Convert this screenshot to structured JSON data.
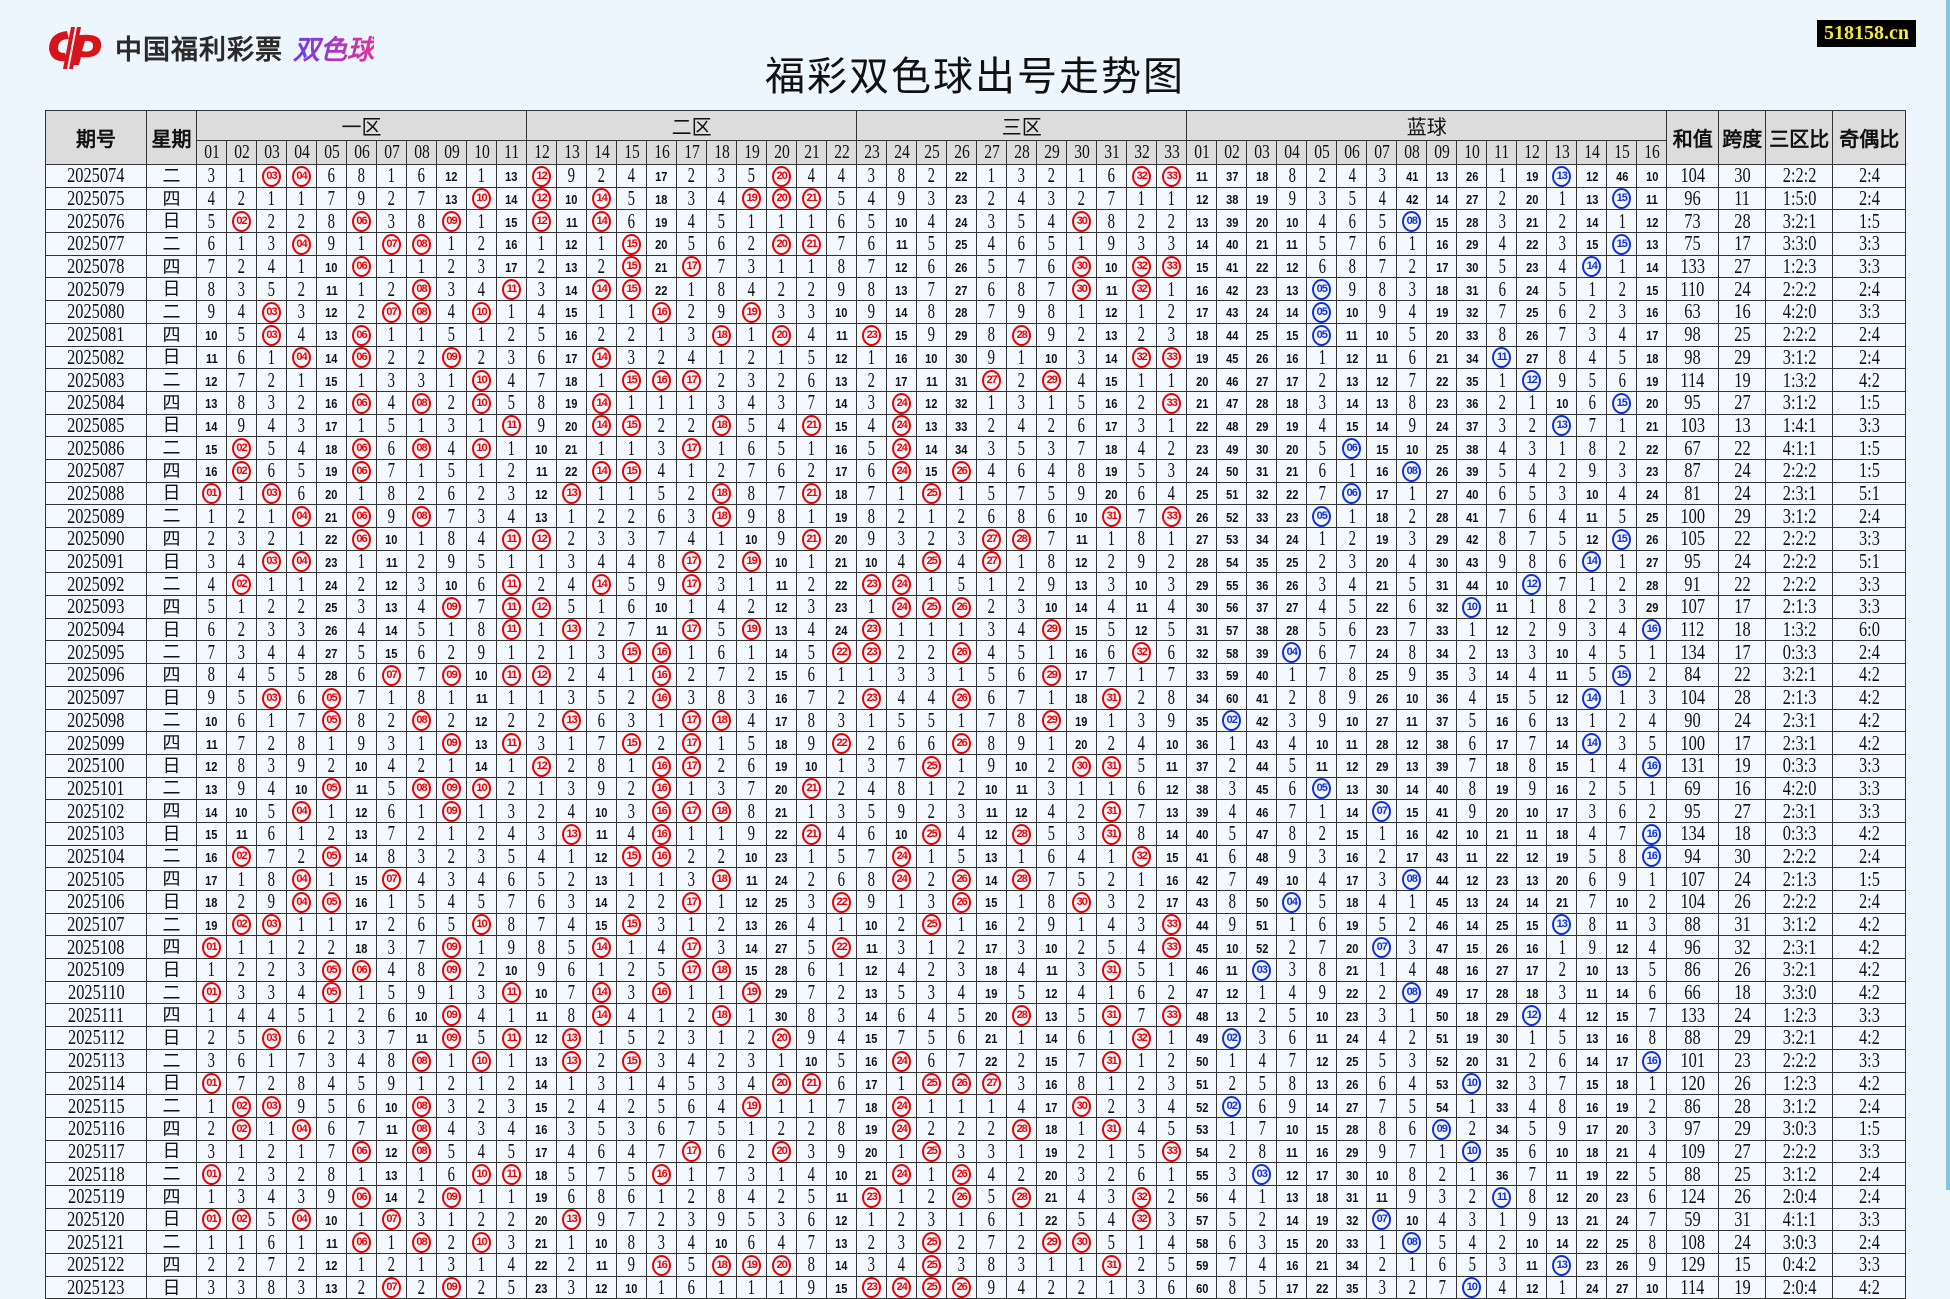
{
  "logo": {
    "brand": "中国福利彩票",
    "product": "双色球"
  },
  "watermark": "518158.cn",
  "title": "福彩双色球出号走势图",
  "headers": {
    "issue": "期号",
    "weekday": "星期",
    "zones": [
      "一区",
      "二区",
      "三区"
    ],
    "blue": "蓝球",
    "sum": "和值",
    "span": "跨度",
    "zone_ratio": "三区比",
    "odd_even": "奇偶比"
  },
  "red_numbers": [
    "01",
    "02",
    "03",
    "04",
    "05",
    "06",
    "07",
    "08",
    "09",
    "10",
    "11",
    "12",
    "13",
    "14",
    "15",
    "16",
    "17",
    "18",
    "19",
    "20",
    "21",
    "22",
    "23",
    "24",
    "25",
    "26",
    "27",
    "28",
    "29",
    "30",
    "31",
    "32",
    "33"
  ],
  "blue_numbers": [
    "01",
    "02",
    "03",
    "04",
    "05",
    "06",
    "07",
    "08",
    "09",
    "10",
    "11",
    "12",
    "13",
    "14",
    "15",
    "16"
  ],
  "first_row_omissions": {
    "red": [
      3,
      1,
      null,
      null,
      6,
      8,
      1,
      6,
      12,
      1,
      13,
      null,
      9,
      2,
      4,
      17,
      2,
      3,
      5,
      null,
      4,
      4,
      3,
      8,
      2,
      22,
      1,
      3,
      2,
      1,
      6,
      null,
      null
    ],
    "blue": [
      11,
      37,
      18,
      8,
      2,
      4,
      3,
      41,
      13,
      26,
      1,
      19,
      null,
      12,
      46,
      10
    ]
  },
  "colors": {
    "red_ball": "#e00000",
    "blue_ball": "#1030e0",
    "header_bg": "#dcdcdc",
    "cell_bg": "#f4f9ff",
    "watermark_text": "#f5e93a"
  },
  "rows": [
    {
      "issue": "2025074",
      "weekday": "二",
      "red": [
        3,
        4,
        12,
        20,
        32,
        33
      ],
      "blue": 13,
      "sum": 104,
      "span": 30,
      "zone_ratio": "2:2:2",
      "odd_even": "2:4"
    },
    {
      "issue": "2025075",
      "weekday": "四",
      "red": [
        10,
        12,
        14,
        19,
        20,
        21
      ],
      "blue": 15,
      "sum": 96,
      "span": 11,
      "zone_ratio": "1:5:0",
      "odd_even": "2:4"
    },
    {
      "issue": "2025076",
      "weekday": "日",
      "red": [
        2,
        6,
        9,
        12,
        14,
        30
      ],
      "blue": 8,
      "sum": 73,
      "span": 28,
      "zone_ratio": "3:2:1",
      "odd_even": "1:5"
    },
    {
      "issue": "2025077",
      "weekday": "二",
      "red": [
        4,
        7,
        8,
        15,
        20,
        21
      ],
      "blue": 15,
      "sum": 75,
      "span": 17,
      "zone_ratio": "3:3:0",
      "odd_even": "3:3"
    },
    {
      "issue": "2025078",
      "weekday": "四",
      "red": [
        6,
        15,
        17,
        30,
        32,
        33
      ],
      "blue": 14,
      "sum": 133,
      "span": 27,
      "zone_ratio": "1:2:3",
      "odd_even": "3:3"
    },
    {
      "issue": "2025079",
      "weekday": "日",
      "red": [
        8,
        11,
        14,
        15,
        30,
        32
      ],
      "blue": 5,
      "sum": 110,
      "span": 24,
      "zone_ratio": "2:2:2",
      "odd_even": "2:4"
    },
    {
      "issue": "2025080",
      "weekday": "二",
      "red": [
        3,
        7,
        8,
        10,
        16,
        19
      ],
      "blue": 5,
      "sum": 63,
      "span": 16,
      "zone_ratio": "4:2:0",
      "odd_even": "3:3"
    },
    {
      "issue": "2025081",
      "weekday": "四",
      "red": [
        3,
        6,
        18,
        20,
        23,
        28
      ],
      "blue": 5,
      "sum": 98,
      "span": 25,
      "zone_ratio": "2:2:2",
      "odd_even": "2:4"
    },
    {
      "issue": "2025082",
      "weekday": "日",
      "red": [
        4,
        6,
        9,
        14,
        32,
        33
      ],
      "blue": 11,
      "sum": 98,
      "span": 29,
      "zone_ratio": "3:1:2",
      "odd_even": "2:4"
    },
    {
      "issue": "2025083",
      "weekday": "二",
      "red": [
        10,
        15,
        16,
        17,
        27,
        29
      ],
      "blue": 12,
      "sum": 114,
      "span": 19,
      "zone_ratio": "1:3:2",
      "odd_even": "4:2"
    },
    {
      "issue": "2025084",
      "weekday": "四",
      "red": [
        6,
        8,
        10,
        14,
        24,
        33
      ],
      "blue": 15,
      "sum": 95,
      "span": 27,
      "zone_ratio": "3:1:2",
      "odd_even": "1:5"
    },
    {
      "issue": "2025085",
      "weekday": "日",
      "red": [
        11,
        14,
        15,
        18,
        21,
        24
      ],
      "blue": 13,
      "sum": 103,
      "span": 13,
      "zone_ratio": "1:4:1",
      "odd_even": "3:3"
    },
    {
      "issue": "2025086",
      "weekday": "二",
      "red": [
        2,
        6,
        8,
        10,
        17,
        24
      ],
      "blue": 6,
      "sum": 67,
      "span": 22,
      "zone_ratio": "4:1:1",
      "odd_even": "1:5"
    },
    {
      "issue": "2025087",
      "weekday": "四",
      "red": [
        2,
        6,
        14,
        15,
        24,
        26
      ],
      "blue": 8,
      "sum": 87,
      "span": 24,
      "zone_ratio": "2:2:2",
      "odd_even": "1:5"
    },
    {
      "issue": "2025088",
      "weekday": "日",
      "red": [
        1,
        3,
        13,
        18,
        21,
        25
      ],
      "blue": 6,
      "sum": 81,
      "span": 24,
      "zone_ratio": "2:3:1",
      "odd_even": "5:1"
    },
    {
      "issue": "2025089",
      "weekday": "二",
      "red": [
        4,
        6,
        8,
        18,
        31,
        33
      ],
      "blue": 5,
      "sum": 100,
      "span": 29,
      "zone_ratio": "3:1:2",
      "odd_even": "2:4"
    },
    {
      "issue": "2025090",
      "weekday": "四",
      "red": [
        6,
        11,
        12,
        21,
        27,
        28
      ],
      "blue": 15,
      "sum": 105,
      "span": 22,
      "zone_ratio": "2:2:2",
      "odd_even": "3:3"
    },
    {
      "issue": "2025091",
      "weekday": "日",
      "red": [
        3,
        4,
        17,
        19,
        25,
        27
      ],
      "blue": 14,
      "sum": 95,
      "span": 24,
      "zone_ratio": "2:2:2",
      "odd_even": "5:1"
    },
    {
      "issue": "2025092",
      "weekday": "二",
      "red": [
        2,
        11,
        14,
        17,
        23,
        24
      ],
      "blue": 12,
      "sum": 91,
      "span": 22,
      "zone_ratio": "2:2:2",
      "odd_even": "3:3"
    },
    {
      "issue": "2025093",
      "weekday": "四",
      "red": [
        9,
        11,
        12,
        24,
        25,
        26
      ],
      "blue": 10,
      "sum": 107,
      "span": 17,
      "zone_ratio": "2:1:3",
      "odd_even": "3:3"
    },
    {
      "issue": "2025094",
      "weekday": "日",
      "red": [
        11,
        13,
        17,
        19,
        23,
        29
      ],
      "blue": 16,
      "sum": 112,
      "span": 18,
      "zone_ratio": "1:3:2",
      "odd_even": "6:0"
    },
    {
      "issue": "2025095",
      "weekday": "二",
      "red": [
        15,
        16,
        22,
        23,
        26,
        32
      ],
      "blue": 4,
      "sum": 134,
      "span": 17,
      "zone_ratio": "0:3:3",
      "odd_even": "2:4"
    },
    {
      "issue": "2025096",
      "weekday": "四",
      "red": [
        7,
        9,
        11,
        12,
        16,
        29
      ],
      "blue": 15,
      "sum": 84,
      "span": 22,
      "zone_ratio": "3:2:1",
      "odd_even": "4:2"
    },
    {
      "issue": "2025097",
      "weekday": "日",
      "red": [
        3,
        5,
        16,
        23,
        26,
        31
      ],
      "blue": 14,
      "sum": 104,
      "span": 28,
      "zone_ratio": "2:1:3",
      "odd_even": "4:2"
    },
    {
      "issue": "2025098",
      "weekday": "二",
      "red": [
        5,
        8,
        13,
        17,
        18,
        29
      ],
      "blue": 2,
      "sum": 90,
      "span": 24,
      "zone_ratio": "2:3:1",
      "odd_even": "4:2"
    },
    {
      "issue": "2025099",
      "weekday": "四",
      "red": [
        9,
        11,
        15,
        17,
        22,
        26
      ],
      "blue": 14,
      "sum": 100,
      "span": 17,
      "zone_ratio": "2:3:1",
      "odd_even": "4:2"
    },
    {
      "issue": "2025100",
      "weekday": "日",
      "red": [
        12,
        16,
        17,
        25,
        30,
        31
      ],
      "blue": 16,
      "sum": 131,
      "span": 19,
      "zone_ratio": "0:3:3",
      "odd_even": "3:3"
    },
    {
      "issue": "2025101",
      "weekday": "二",
      "red": [
        5,
        8,
        9,
        10,
        16,
        21
      ],
      "blue": 5,
      "sum": 69,
      "span": 16,
      "zone_ratio": "4:2:0",
      "odd_even": "3:3"
    },
    {
      "issue": "2025102",
      "weekday": "四",
      "red": [
        4,
        9,
        16,
        17,
        18,
        31
      ],
      "blue": 7,
      "sum": 95,
      "span": 27,
      "zone_ratio": "2:3:1",
      "odd_even": "3:3"
    },
    {
      "issue": "2025103",
      "weekday": "日",
      "red": [
        13,
        16,
        21,
        25,
        28,
        31
      ],
      "blue": 16,
      "sum": 134,
      "span": 18,
      "zone_ratio": "0:3:3",
      "odd_even": "4:2"
    },
    {
      "issue": "2025104",
      "weekday": "二",
      "red": [
        2,
        5,
        15,
        16,
        24,
        32
      ],
      "blue": 16,
      "sum": 94,
      "span": 30,
      "zone_ratio": "2:2:2",
      "odd_even": "2:4"
    },
    {
      "issue": "2025105",
      "weekday": "四",
      "red": [
        4,
        7,
        18,
        24,
        26,
        28
      ],
      "blue": 8,
      "sum": 107,
      "span": 24,
      "zone_ratio": "2:1:3",
      "odd_even": "1:5"
    },
    {
      "issue": "2025106",
      "weekday": "日",
      "red": [
        4,
        5,
        17,
        22,
        26,
        30
      ],
      "blue": 4,
      "sum": 104,
      "span": 26,
      "zone_ratio": "2:2:2",
      "odd_even": "2:4"
    },
    {
      "issue": "2025107",
      "weekday": "二",
      "red": [
        2,
        3,
        10,
        15,
        25,
        33
      ],
      "blue": 13,
      "sum": 88,
      "span": 31,
      "zone_ratio": "3:1:2",
      "odd_even": "4:2"
    },
    {
      "issue": "2025108",
      "weekday": "四",
      "red": [
        1,
        9,
        14,
        17,
        22,
        33
      ],
      "blue": 7,
      "sum": 96,
      "span": 32,
      "zone_ratio": "2:3:1",
      "odd_even": "4:2"
    },
    {
      "issue": "2025109",
      "weekday": "日",
      "red": [
        5,
        6,
        9,
        17,
        18,
        31
      ],
      "blue": 3,
      "sum": 86,
      "span": 26,
      "zone_ratio": "3:2:1",
      "odd_even": "4:2"
    },
    {
      "issue": "2025110",
      "weekday": "二",
      "red": [
        1,
        5,
        11,
        14,
        16,
        19
      ],
      "blue": 8,
      "sum": 66,
      "span": 18,
      "zone_ratio": "3:3:0",
      "odd_even": "4:2"
    },
    {
      "issue": "2025111",
      "weekday": "四",
      "red": [
        9,
        14,
        18,
        28,
        31,
        33
      ],
      "blue": 12,
      "sum": 133,
      "span": 24,
      "zone_ratio": "1:2:3",
      "odd_even": "3:3"
    },
    {
      "issue": "2025112",
      "weekday": "日",
      "red": [
        3,
        9,
        11,
        13,
        20,
        32
      ],
      "blue": 2,
      "sum": 88,
      "span": 29,
      "zone_ratio": "3:2:1",
      "odd_even": "4:2"
    },
    {
      "issue": "2025113",
      "weekday": "二",
      "red": [
        8,
        10,
        13,
        15,
        24,
        31
      ],
      "blue": 16,
      "sum": 101,
      "span": 23,
      "zone_ratio": "2:2:2",
      "odd_even": "3:3"
    },
    {
      "issue": "2025114",
      "weekday": "日",
      "red": [
        1,
        20,
        21,
        25,
        26,
        27
      ],
      "blue": 10,
      "sum": 120,
      "span": 26,
      "zone_ratio": "1:2:3",
      "odd_even": "4:2"
    },
    {
      "issue": "2025115",
      "weekday": "二",
      "red": [
        2,
        3,
        8,
        19,
        24,
        30
      ],
      "blue": 2,
      "sum": 86,
      "span": 28,
      "zone_ratio": "3:1:2",
      "odd_even": "2:4"
    },
    {
      "issue": "2025116",
      "weekday": "四",
      "red": [
        2,
        4,
        8,
        24,
        28,
        31
      ],
      "blue": 9,
      "sum": 97,
      "span": 29,
      "zone_ratio": "3:0:3",
      "odd_even": "1:5"
    },
    {
      "issue": "2025117",
      "weekday": "日",
      "red": [
        6,
        8,
        17,
        20,
        25,
        33
      ],
      "blue": 10,
      "sum": 109,
      "span": 27,
      "zone_ratio": "2:2:2",
      "odd_even": "3:3"
    },
    {
      "issue": "2025118",
      "weekday": "二",
      "red": [
        1,
        10,
        11,
        16,
        24,
        26
      ],
      "blue": 3,
      "sum": 88,
      "span": 25,
      "zone_ratio": "3:1:2",
      "odd_even": "2:4"
    },
    {
      "issue": "2025119",
      "weekday": "四",
      "red": [
        6,
        9,
        23,
        26,
        28,
        32
      ],
      "blue": 11,
      "sum": 124,
      "span": 26,
      "zone_ratio": "2:0:4",
      "odd_even": "2:4"
    },
    {
      "issue": "2025120",
      "weekday": "日",
      "red": [
        1,
        2,
        4,
        7,
        13,
        32
      ],
      "blue": 7,
      "sum": 59,
      "span": 31,
      "zone_ratio": "4:1:1",
      "odd_even": "3:3"
    },
    {
      "issue": "2025121",
      "weekday": "二",
      "red": [
        6,
        8,
        10,
        25,
        29,
        30
      ],
      "blue": 8,
      "sum": 108,
      "span": 24,
      "zone_ratio": "3:0:3",
      "odd_even": "2:4"
    },
    {
      "issue": "2025122",
      "weekday": "四",
      "red": [
        16,
        18,
        19,
        20,
        25,
        31
      ],
      "blue": 13,
      "sum": 129,
      "span": 15,
      "zone_ratio": "0:4:2",
      "odd_even": "3:3"
    },
    {
      "issue": "2025123",
      "weekday": "日",
      "red": [
        7,
        9,
        23,
        24,
        25,
        26
      ],
      "blue": 10,
      "sum": 114,
      "span": 19,
      "zone_ratio": "2:0:4",
      "odd_even": "4:2"
    }
  ]
}
